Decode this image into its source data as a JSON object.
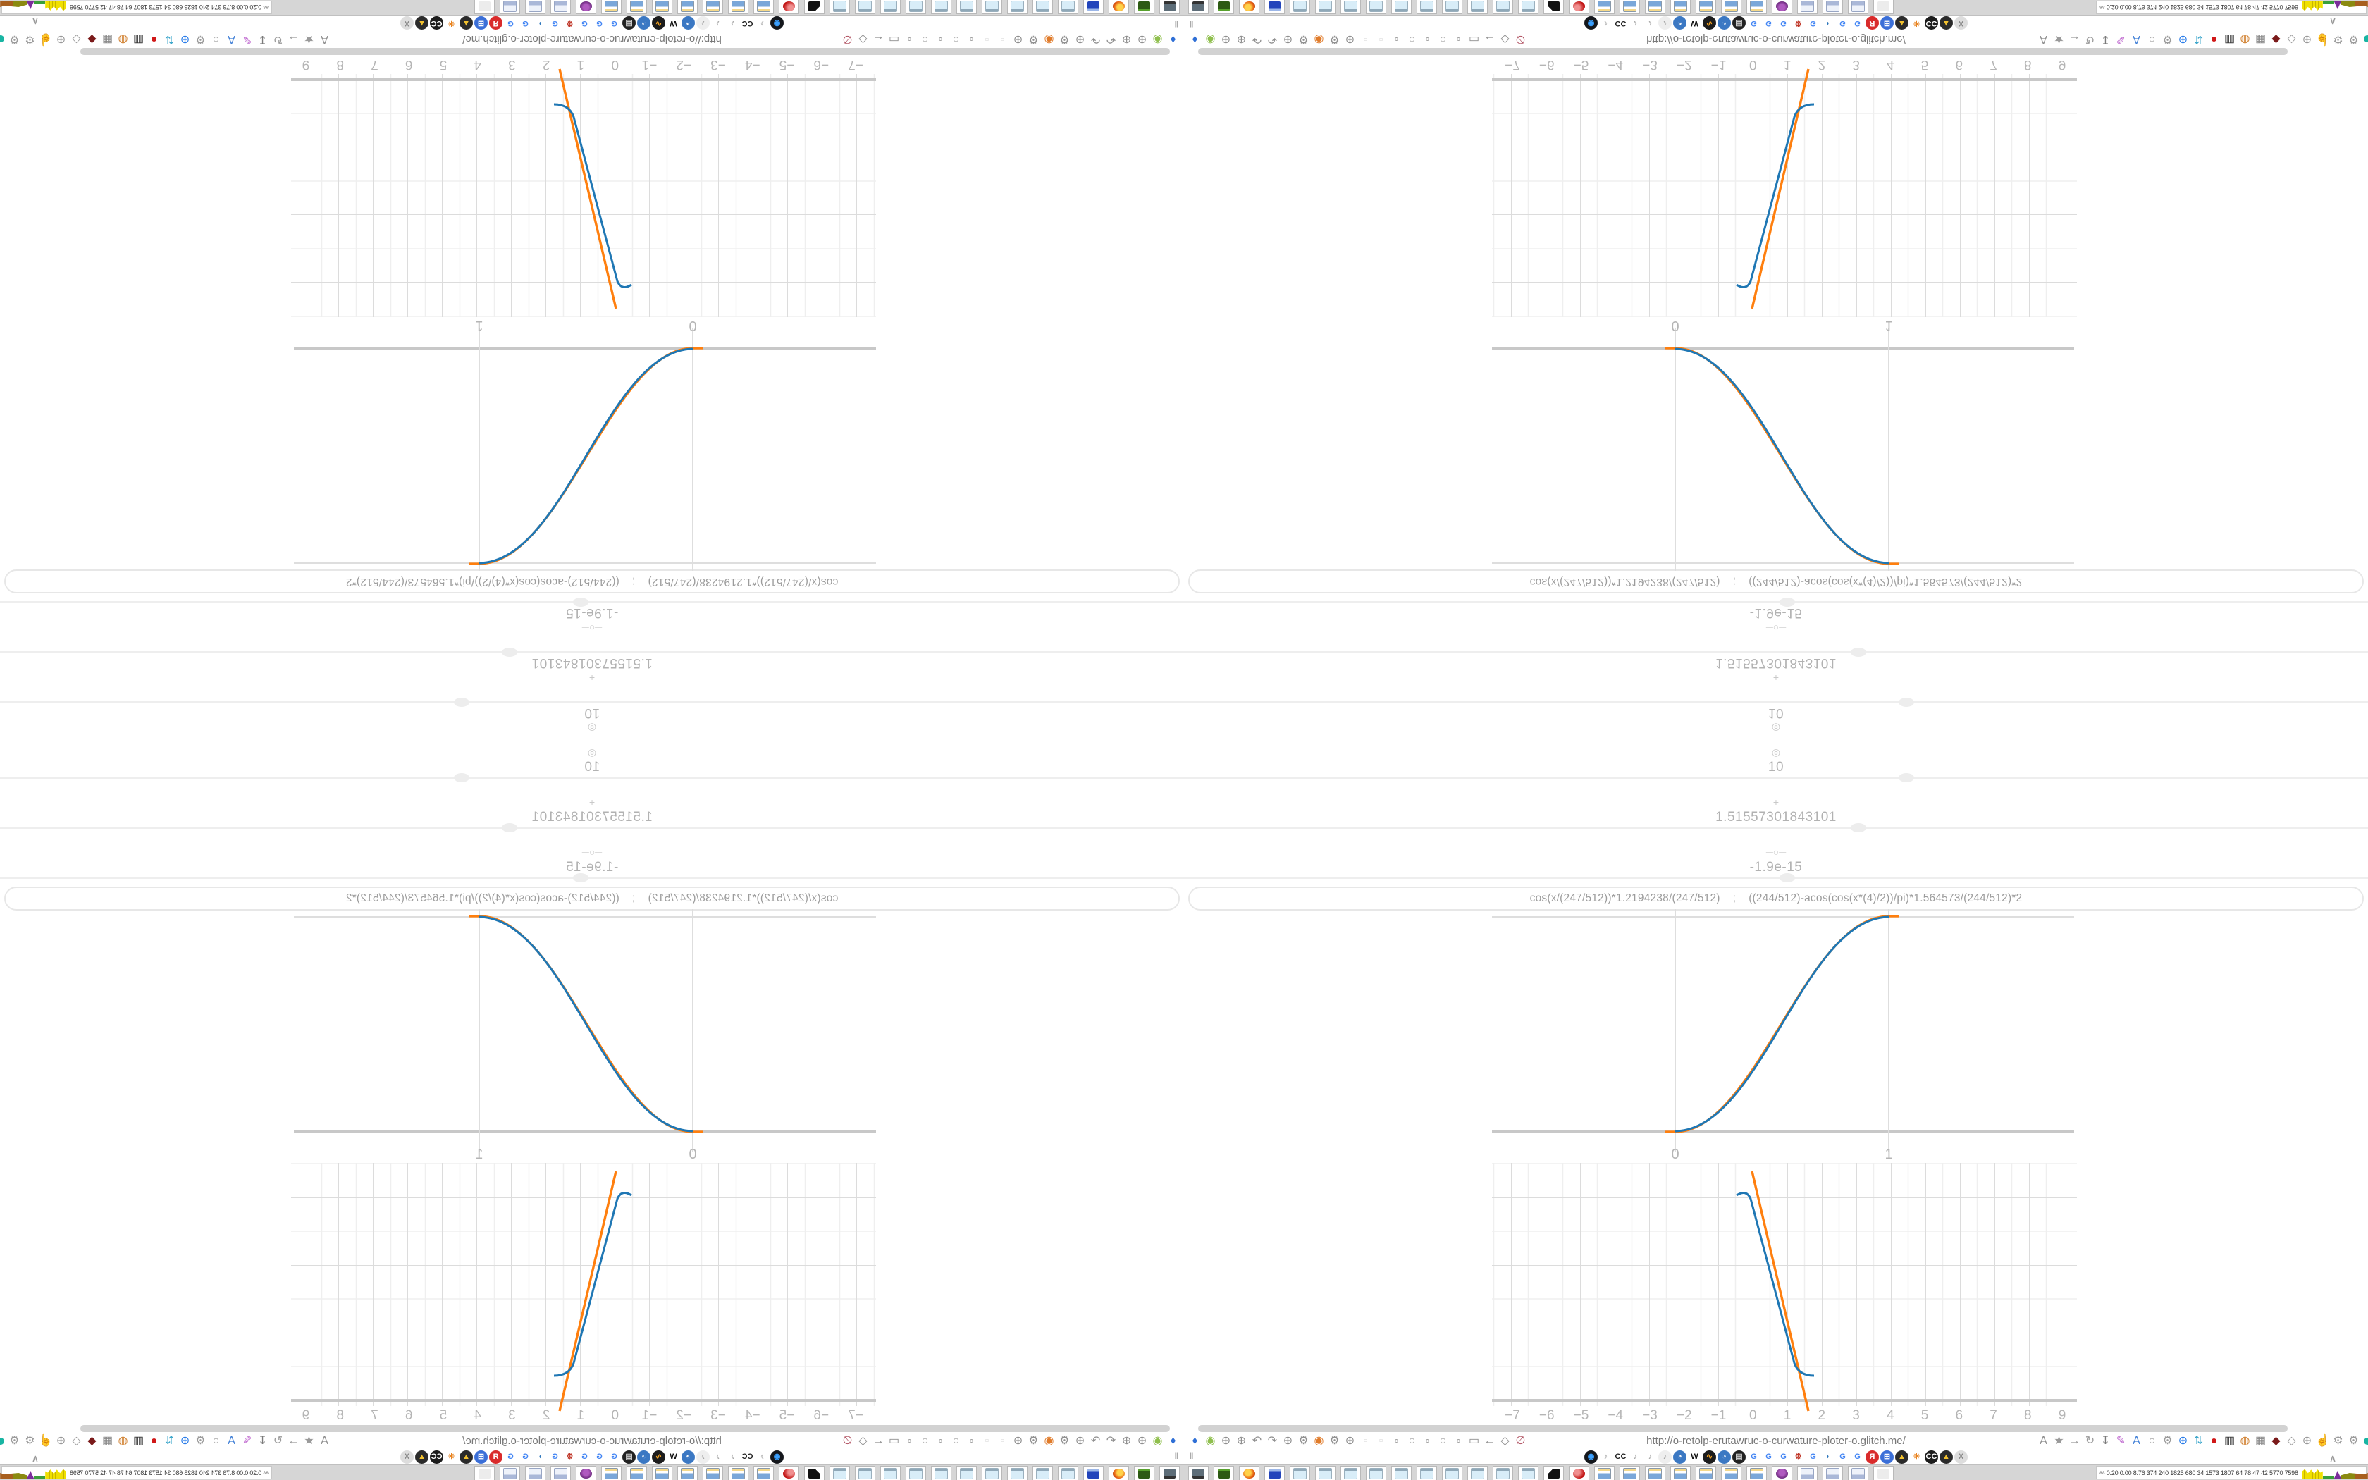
{
  "plotter": {
    "rows": [
      {
        "icon_glyph": "◎",
        "icon": "target-icon",
        "value": "10",
        "handle_x": 1014
      },
      {
        "icon_glyph": "+",
        "icon": "drag-handle-icon",
        "value": "1.51557301843101",
        "handle_x": 946
      },
      {
        "icon_glyph": "─○─",
        "icon": "slider-icon",
        "value": "-1.9e-15",
        "handle_x": 845
      }
    ],
    "expression": "cos(x/(247/512))*1.2194238/(247/512)    ;    ((244/512)-acos(cos(x*(4)/2))/pi)*1.564573/(244/512)*2"
  },
  "chart_data": [
    {
      "type": "line",
      "title": "",
      "xlabel": "",
      "ylabel": "",
      "x_tick_labels": [
        {
          "t": "0"
        },
        {
          "t": "1"
        }
      ],
      "xlim": [
        -0.85,
        2.2
      ],
      "ylim": [
        -0.17,
        1.2
      ],
      "grid": "unit lines only at x=0, x=1, y=0, y=1",
      "legend": "none",
      "series": [
        {
          "name": "smooth-step-blue",
          "color": "#1f77b4",
          "x": [
            0,
            0.125,
            0.25,
            0.375,
            0.5,
            0.625,
            0.75,
            0.875,
            1
          ],
          "y": [
            0,
            0.02,
            0.1,
            0.27,
            0.5,
            0.73,
            0.9,
            0.98,
            1
          ]
        },
        {
          "name": "smooth-step-orange",
          "color": "#ff7f0e",
          "x": [
            -0.05,
            0,
            0.125,
            0.25,
            0.375,
            0.5,
            0.625,
            0.75,
            0.875,
            1,
            1.05
          ],
          "y": [
            0,
            0,
            0.03,
            0.12,
            0.28,
            0.5,
            0.72,
            0.88,
            0.97,
            1,
            1
          ]
        }
      ]
    },
    {
      "type": "line",
      "title": "",
      "xlabel": "",
      "ylabel": "",
      "x_tick_labels": [
        {
          "t": "−7"
        },
        {
          "t": "−6"
        },
        {
          "t": "−5"
        },
        {
          "t": "−4"
        },
        {
          "t": "−3"
        },
        {
          "t": "−2"
        },
        {
          "t": "−1"
        },
        {
          "t": "0"
        },
        {
          "t": "1"
        },
        {
          "t": "2"
        },
        {
          "t": "3"
        },
        {
          "t": "4"
        },
        {
          "t": "5"
        },
        {
          "t": "6"
        },
        {
          "t": "7"
        },
        {
          "t": "8"
        },
        {
          "t": "9"
        }
      ],
      "xlim": [
        -7.6,
        9.7
      ],
      "ylim": [
        -0.15,
        3.5
      ],
      "grid": "fine grid, minor 0.5 unit, major 1 unit",
      "legend": "none",
      "series": [
        {
          "name": "steep-tangent-orange",
          "color": "#ff7f0e",
          "x": [
            0,
            1.6
          ],
          "y": [
            3.32,
            -0.1
          ]
        },
        {
          "name": "steep-curve-blue",
          "color": "#1f77b4",
          "x": [
            -0.45,
            -0.2,
            0,
            0.5,
            1.0,
            1.2,
            1.45,
            1.65
          ],
          "y": [
            3.05,
            3.02,
            2.9,
            1.85,
            0.8,
            0.45,
            0.42,
            0.4
          ]
        }
      ]
    }
  ],
  "browser": {
    "url": "http://o-retolp-erutawruc-o-curwature-ploter-o.glitch.me/",
    "pause_glyph": "‖",
    "collapse_glyph": "∧",
    "status_dot_color": "#19b5a3",
    "left_icons": [
      {
        "g": "♦",
        "c": "#2f6fd6",
        "n": "pin-icon"
      },
      {
        "g": "◉",
        "c": "#8fbf4d",
        "n": "green-ring-icon"
      },
      {
        "g": "⊕",
        "c": "#909090",
        "n": "globe-icon"
      },
      {
        "g": "⊕",
        "c": "#909090",
        "n": "globe-icon"
      },
      {
        "g": "↶",
        "c": "#909090",
        "n": "back-icon"
      },
      {
        "g": "↷",
        "c": "#909090",
        "n": "forward-icon"
      },
      {
        "g": "⊕",
        "c": "#909090",
        "n": "globe-icon"
      },
      {
        "g": "⚙",
        "c": "#909090",
        "n": "wrench-icon"
      },
      {
        "g": "◉",
        "c": "#e07b2a",
        "n": "firefox-icon"
      },
      {
        "g": "⚙",
        "c": "#909090",
        "n": "gear-icon"
      },
      {
        "g": "⊕",
        "c": "#909090",
        "n": "globe-icon"
      },
      {
        "g": "▫",
        "c": "#dddddd",
        "n": "ghost-button-icon"
      },
      {
        "g": "▫",
        "c": "#dddddd",
        "n": "ghost-button-icon"
      },
      {
        "g": "∘",
        "c": "#a0a0a0",
        "n": "dot-icon"
      },
      {
        "g": "○",
        "c": "#a0a0a0",
        "n": "circle-icon"
      },
      {
        "g": "∘",
        "c": "#a0a0a0",
        "n": "dot-icon"
      },
      {
        "g": "○",
        "c": "#a0a0a0",
        "n": "circle-icon"
      },
      {
        "g": "∘",
        "c": "#a0a0a0",
        "n": "dot-icon"
      },
      {
        "g": "▭",
        "c": "#909090",
        "n": "folder-icon"
      },
      {
        "g": "←",
        "c": "#909090",
        "n": "arrow-left-icon"
      },
      {
        "g": "◇",
        "c": "#909090",
        "n": "shield-icon"
      },
      {
        "g": "∅",
        "c": "#b05060",
        "n": "blocked-page-icon"
      }
    ],
    "right_icons": [
      {
        "g": "A",
        "c": "#8a8a8a",
        "n": "translate-icon"
      },
      {
        "g": "★",
        "c": "#9a9a9a",
        "n": "star-icon"
      },
      {
        "g": "→",
        "c": "#9a9a9a",
        "n": "arrow-right-icon"
      },
      {
        "g": "↻",
        "c": "#9a9a9a",
        "n": "reload-icon"
      },
      {
        "g": "↧",
        "c": "#7a7a7a",
        "n": "download-icon"
      },
      {
        "g": "✎",
        "c": "#c06ad0",
        "n": "highlighter-icon"
      },
      {
        "g": "A",
        "c": "#3a7bd5",
        "n": "translate-blue-icon"
      },
      {
        "g": "○",
        "c": "#9a9a9a",
        "n": "mouse-icon"
      },
      {
        "g": "⚙",
        "c": "#9a9a9a",
        "n": "gear-icon"
      },
      {
        "g": "⊕",
        "c": "#2b7de9",
        "n": "add-circle-icon"
      },
      {
        "g": "⇅",
        "c": "#35a3c9",
        "n": "sync-shield-icon"
      },
      {
        "g": "●",
        "c": "#d01818",
        "n": "tcp-icon"
      },
      {
        "g": "▥",
        "c": "#333333",
        "n": "trash-barrel-icon"
      },
      {
        "g": "◍",
        "c": "#d08030",
        "n": "world-icon"
      },
      {
        "g": "▦",
        "c": "#8a8a8a",
        "n": "archive-icon"
      },
      {
        "g": "◆",
        "c": "#7a1a1a",
        "n": "ublock-icon"
      },
      {
        "g": "◇",
        "c": "#9a9a9a",
        "n": "shield-icon"
      },
      {
        "g": "⊕",
        "c": "#9a9a9a",
        "n": "globe-icon"
      },
      {
        "g": "☝",
        "c": "#9a9a9a",
        "n": "thumb-icon"
      },
      {
        "g": "⚙",
        "c": "#9a9a9a",
        "n": "tools-icon"
      },
      {
        "g": "⚙",
        "c": "#9a9a9a",
        "n": "settings-icon"
      }
    ],
    "extension_icons": [
      {
        "g": "◉",
        "bg": "#14171c",
        "c": "#3aa0ff",
        "n": "vinyl-icon"
      },
      {
        "g": "♪",
        "bg": "",
        "c": "#9a9a9a",
        "n": "mute-icon"
      },
      {
        "g": "CC",
        "bg": "#ffffff",
        "c": "#222222",
        "n": "cc-icon"
      },
      {
        "g": "♪",
        "bg": "",
        "c": "#9a9a9a",
        "n": "mute-icon"
      },
      {
        "g": "♪",
        "bg": "",
        "c": "#9a9a9a",
        "n": "mute-icon"
      },
      {
        "g": "♪",
        "bg": "#eeeeee",
        "c": "#9a9a9a",
        "n": "mute-circle-icon"
      },
      {
        "g": "◔",
        "bg": "#3b78c3",
        "c": "#ffffff",
        "n": "person-globe-icon"
      },
      {
        "g": "W",
        "bg": "#ffffff",
        "c": "#111111",
        "n": "wikipedia-icon"
      },
      {
        "g": "∿",
        "bg": "#1c1c1c",
        "c": "#f0a020",
        "n": "waveform-icon"
      },
      {
        "g": "◔",
        "bg": "#3b78c3",
        "c": "#ffffff",
        "n": "person-globe-icon"
      },
      {
        "g": "▤",
        "bg": "#222222",
        "c": "#cccccc",
        "n": "barrel-icon"
      },
      {
        "g": "G",
        "bg": "#ffffff",
        "c": "#4285f4",
        "n": "gtranslate-icon"
      },
      {
        "g": "G",
        "bg": "#ffffff",
        "c": "#4285f4",
        "n": "google-icon"
      },
      {
        "g": "G",
        "bg": "#ffffff",
        "c": "#4285f4",
        "n": "google-icon"
      },
      {
        "g": "⚙",
        "bg": "#ffffff",
        "c": "#c0392b",
        "n": "red-gear-icon"
      },
      {
        "g": "G",
        "bg": "#ffffff",
        "c": "#4285f4",
        "n": "google-icon"
      },
      {
        "g": "◗",
        "bg": "#ffffff",
        "c": "#2e77bc",
        "n": "swoosh-icon"
      },
      {
        "g": "G",
        "bg": "#ffffff",
        "c": "#4285f4",
        "n": "google-icon"
      },
      {
        "g": "G",
        "bg": "#ffffff",
        "c": "#4285f4",
        "n": "google-icon"
      },
      {
        "g": "Я",
        "bg": "#d92b2b",
        "c": "#ffffff",
        "n": "yandex-icon"
      },
      {
        "g": "⊞",
        "bg": "#3b6fd8",
        "c": "#ffffff",
        "n": "grid-globe-icon"
      },
      {
        "g": "▲",
        "bg": "#2b2b2b",
        "c": "#f2c12e",
        "n": "photo-icon"
      },
      {
        "g": "✳",
        "bg": "#ffffff",
        "c": "#e8821e",
        "n": "orange-gear-icon"
      },
      {
        "g": "CC",
        "bg": "#1c1c1c",
        "c": "#ffffff",
        "n": "cc-dark-icon"
      },
      {
        "g": "▲",
        "bg": "#2b2b2b",
        "c": "#f2c12e",
        "n": "photo-icon"
      },
      {
        "g": "X",
        "bg": "#dddddd",
        "c": "#888888",
        "n": "hourglass-icon"
      }
    ]
  },
  "taskbar": {
    "buttons": [
      {
        "k": "monitor",
        "n": "monitor-app"
      },
      {
        "k": "battery",
        "n": "green-app"
      },
      {
        "k": "firefox",
        "n": "firefox-app"
      },
      {
        "k": "floppy",
        "n": "floppy-app"
      },
      {
        "k": "pad",
        "n": "notepad-app"
      },
      {
        "k": "pad",
        "n": "notepad-app"
      },
      {
        "k": "pad",
        "n": "notepad-app"
      },
      {
        "k": "pad",
        "n": "notepad-app"
      },
      {
        "k": "pad",
        "n": "notepad-app"
      },
      {
        "k": "pad",
        "n": "notepad-app"
      },
      {
        "k": "pad",
        "n": "notepad-app"
      },
      {
        "k": "pad",
        "n": "notepad-app"
      },
      {
        "k": "pad",
        "n": "notepad-app"
      },
      {
        "k": "pad",
        "n": "notepad-app"
      },
      {
        "k": "cat",
        "n": "black-app"
      },
      {
        "k": "redball",
        "n": "red-app"
      },
      {
        "k": "calc",
        "n": "calculator-app"
      },
      {
        "k": "calc",
        "n": "calculator-app"
      },
      {
        "k": "calc",
        "n": "calculator-app"
      },
      {
        "k": "calc",
        "n": "calculator-app"
      },
      {
        "k": "calc",
        "n": "calculator-app"
      },
      {
        "k": "calc",
        "n": "calculator-app"
      },
      {
        "k": "calc",
        "n": "calculator-app"
      },
      {
        "k": "owl",
        "n": "owl-app"
      },
      {
        "k": "scroll",
        "n": "scroll-app"
      },
      {
        "k": "scroll",
        "n": "scroll-app"
      },
      {
        "k": "scroll",
        "n": "scroll-app"
      },
      {
        "k": "ghost",
        "n": "inactive-app"
      }
    ],
    "system_monitor": {
      "chevron": "∧∧",
      "text": "0.20 0.00 8.76 374 240 1825 680 34 1573 1807 64 78 47 42 5770 7598"
    }
  }
}
